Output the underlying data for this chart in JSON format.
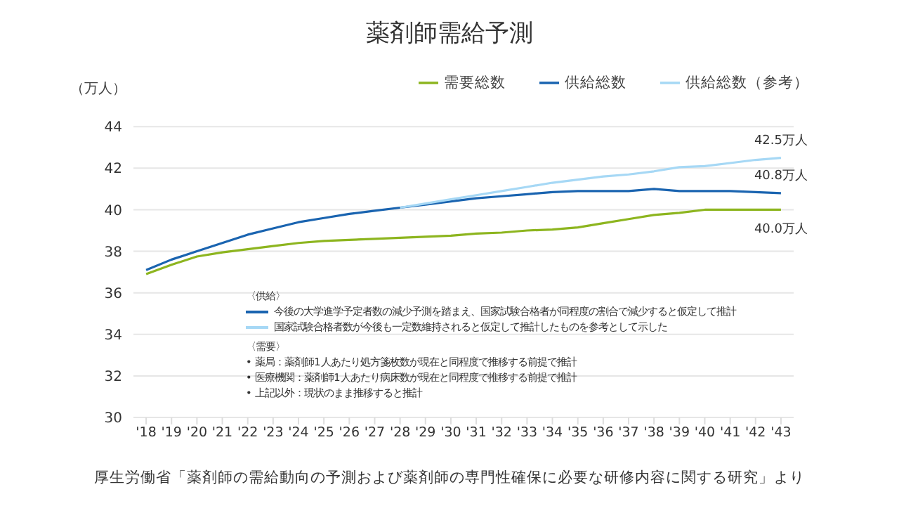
{
  "chart_data": {
    "type": "line",
    "title": "薬剤師需給予測",
    "ylabel": "（万人）",
    "categories": [
      "'18",
      "'19",
      "'20",
      "'21",
      "'22",
      "'23",
      "'24",
      "'25",
      "'26",
      "'27",
      "'28",
      "'29",
      "'30",
      "'31",
      "'32",
      "'33",
      "'34",
      "'35",
      "'36",
      "'37",
      "'38",
      "'39",
      "'40",
      "'41",
      "'42",
      "'43"
    ],
    "series": [
      {
        "name": "需要総数",
        "color": "#8db51f",
        "values": [
          36.9,
          37.35,
          37.75,
          37.95,
          38.1,
          38.25,
          38.4,
          38.5,
          38.55,
          38.6,
          38.65,
          38.7,
          38.75,
          38.85,
          38.9,
          39.0,
          39.05,
          39.15,
          39.35,
          39.55,
          39.75,
          39.85,
          40.0,
          40.0,
          40.0,
          40.0
        ]
      },
      {
        "name": "供給総数",
        "color": "#1a64b0",
        "values": [
          37.1,
          37.6,
          38.0,
          38.4,
          38.8,
          39.1,
          39.4,
          39.6,
          39.8,
          39.95,
          40.1,
          40.25,
          40.4,
          40.55,
          40.65,
          40.75,
          40.85,
          40.9,
          40.9,
          40.9,
          41.0,
          40.9,
          40.9,
          40.9,
          40.85,
          40.8
        ]
      },
      {
        "name": "供給総数（参考）",
        "color": "#a6d8f5",
        "values": [
          null,
          null,
          null,
          null,
          null,
          null,
          null,
          null,
          null,
          null,
          40.1,
          40.3,
          40.5,
          40.7,
          40.9,
          41.1,
          41.3,
          41.45,
          41.6,
          41.7,
          41.85,
          42.05,
          42.1,
          42.25,
          42.4,
          42.5
        ]
      }
    ],
    "ylim": [
      30,
      44
    ],
    "yticks": [
      30,
      32,
      34,
      36,
      38,
      40,
      42,
      44
    ],
    "grid": "y",
    "legend": "top right",
    "marker": "none",
    "line_style": "solid",
    "annotations": [
      {
        "text": "42.5万人",
        "x": "'43",
        "y": 42.5
      },
      {
        "text": "40.8万人",
        "x": "'43",
        "y": 40.8
      },
      {
        "text": "40.0万人",
        "x": "'43",
        "y": 40.0
      },
      "〈供給〉",
      "今後の大学進学予定者数の減少予測を踏まえ、国家試験合格者が同程度の割合で減少すると仮定して推計",
      "国家試験合格者数が今後も一定数維持されると仮定して推計したものを参考として示した",
      "〈需要〉",
      "• 薬局：薬剤師1人あたり処方箋枚数が現在と同程度で推移する前提で推計",
      "• 医療機関：薬剤師1人あたり病床数が現在と同程度で推移する前提で推計",
      "• 上記以外：現状のまま推移すると推計",
      "厚生労働省「薬剤師の需給動向の予測および薬剤師の専門性確保に必要な研修内容に関する研究」より"
    ]
  }
}
